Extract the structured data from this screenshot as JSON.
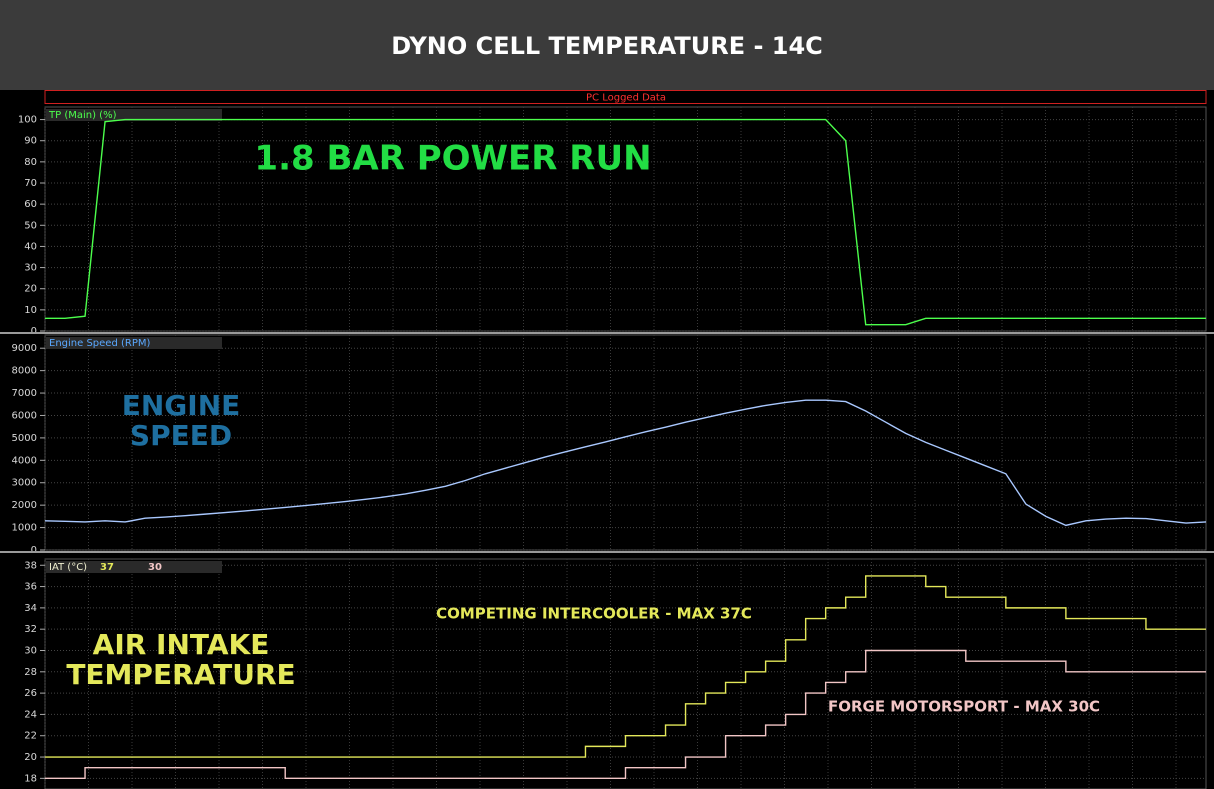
{
  "header": {
    "title": "DYNO CELL TEMPERATURE - 14C"
  },
  "toolbar": {
    "label": "PC Logged Data"
  },
  "chart_data": [
    {
      "type": "line",
      "label": "TP (Main) (%)",
      "annotation": [
        "1.8 BAR POWER RUN"
      ],
      "ylim": [
        0,
        105
      ],
      "yticks": [
        0,
        10,
        20,
        30,
        40,
        50,
        60,
        70,
        80,
        90,
        100
      ],
      "grid": true,
      "series": [
        {
          "name": "TP (Main)",
          "color": "#4cff4c",
          "values": [
            6,
            6,
            7,
            99,
            100,
            100,
            100,
            100,
            100,
            100,
            100,
            100,
            100,
            100,
            100,
            100,
            100,
            100,
            100,
            100,
            100,
            100,
            100,
            100,
            100,
            100,
            100,
            100,
            100,
            100,
            100,
            100,
            100,
            100,
            100,
            100,
            100,
            100,
            100,
            100,
            90,
            3,
            3,
            3,
            6,
            6,
            6,
            6,
            6,
            6,
            6,
            6,
            6,
            6,
            6,
            6,
            6,
            6,
            6
          ]
        }
      ]
    },
    {
      "type": "line",
      "label": "Engine Speed (RPM)",
      "annotation": [
        "ENGINE",
        "SPEED"
      ],
      "ylim": [
        0,
        9500
      ],
      "yticks": [
        0,
        1000,
        2000,
        3000,
        4000,
        5000,
        6000,
        7000,
        8000,
        9000
      ],
      "grid": true,
      "series": [
        {
          "name": "Engine Speed",
          "color": "#a9c8ff",
          "values": [
            1300,
            1280,
            1250,
            1300,
            1250,
            1420,
            1470,
            1530,
            1600,
            1670,
            1740,
            1820,
            1900,
            1980,
            2070,
            2160,
            2260,
            2370,
            2500,
            2660,
            2840,
            3100,
            3400,
            3650,
            3900,
            4150,
            4380,
            4600,
            4820,
            5050,
            5270,
            5480,
            5700,
            5900,
            6100,
            6280,
            6450,
            6580,
            6680,
            6680,
            6620,
            6200,
            5700,
            5200,
            4800,
            4450,
            4100,
            3750,
            3400,
            2050,
            1500,
            1100,
            1300,
            1380,
            1420,
            1400,
            1300,
            1200,
            1250
          ]
        }
      ]
    },
    {
      "type": "line",
      "label": "IAT (°C)",
      "readouts": [
        37,
        30
      ],
      "step": true,
      "annotation": [
        "AIR INTAKE",
        "TEMPERATURE"
      ],
      "notes": [
        "COMPETING INTERCOOLER - MAX 37C",
        "FORGE MOTORSPORT - MAX 30C"
      ],
      "ylim": [
        17,
        38.4
      ],
      "yticks": [
        18,
        20,
        22,
        24,
        26,
        28,
        30,
        32,
        34,
        36,
        38
      ],
      "grid": true,
      "series": [
        {
          "name": "Competing intercooler",
          "color": "#e4e85a",
          "values": [
            20,
            20,
            20,
            20,
            20,
            20,
            20,
            20,
            20,
            20,
            20,
            20,
            20,
            20,
            20,
            20,
            20,
            20,
            20,
            20,
            20,
            20,
            20,
            20,
            20,
            20,
            20,
            21,
            21,
            22,
            22,
            23,
            25,
            26,
            27,
            28,
            29,
            31,
            33,
            34,
            35,
            37,
            37,
            37,
            36,
            35,
            35,
            35,
            34,
            34,
            34,
            33,
            33,
            33,
            33,
            32,
            32,
            32,
            32
          ]
        },
        {
          "name": "Forge Motorsport",
          "color": "#f2c6c6",
          "values": [
            18,
            18,
            19,
            19,
            19,
            19,
            19,
            19,
            19,
            19,
            19,
            19,
            18,
            18,
            18,
            18,
            18,
            18,
            18,
            18,
            18,
            18,
            18,
            18,
            18,
            18,
            18,
            18,
            18,
            19,
            19,
            19,
            20,
            20,
            22,
            22,
            23,
            24,
            26,
            27,
            28,
            30,
            30,
            30,
            30,
            30,
            29,
            29,
            29,
            29,
            29,
            28,
            28,
            28,
            28,
            28,
            28,
            28,
            28
          ]
        }
      ]
    }
  ]
}
